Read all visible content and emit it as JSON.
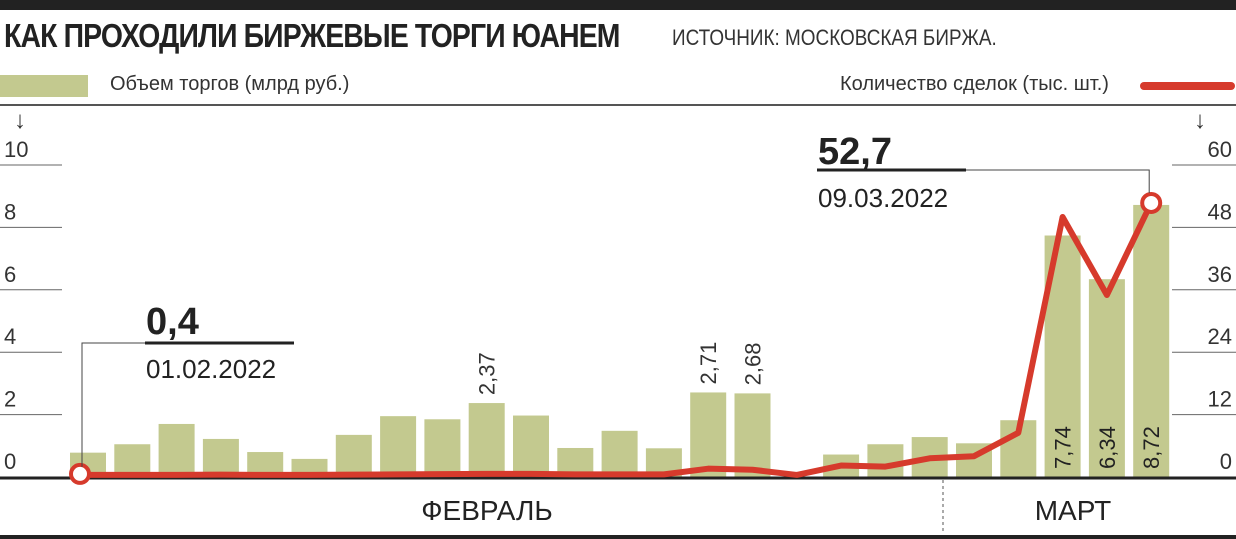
{
  "header": {
    "title": "КАК ПРОХОДИЛИ БИРЖЕВЫЕ ТОРГИ ЮАНЕМ",
    "source": "ИСТОЧНИК: МОСКОВСКАЯ БИРЖА."
  },
  "legend": {
    "bars_label": "Объем торгов (млрд руб.)",
    "line_label": "Количество сделок (тыс. шт.)",
    "arrow_left": "↓",
    "arrow_right": "↓"
  },
  "colors": {
    "bar": "#c3c98f",
    "line": "#d63a2c",
    "axis": "#222222"
  },
  "chart_data": {
    "type": "bar+line",
    "y_left": {
      "ylim": [
        0,
        10
      ],
      "ticks": [
        "0",
        "2",
        "4",
        "6",
        "8",
        "10"
      ]
    },
    "y_right": {
      "ylim": [
        0,
        60
      ],
      "ticks": [
        "0",
        "12",
        "24",
        "36",
        "48",
        "60"
      ]
    },
    "months": [
      "ФЕВРАЛЬ",
      "МАРТ"
    ],
    "bars": {
      "name": "Объем торгов (млрд руб.)",
      "values": [
        0.78,
        1.05,
        1.7,
        1.22,
        0.8,
        0.58,
        1.35,
        1.95,
        1.85,
        2.37,
        1.97,
        0.93,
        1.48,
        0.92,
        2.71,
        2.68,
        null,
        0.72,
        1.05,
        1.28,
        1.08,
        1.82,
        7.74,
        6.34,
        8.72
      ],
      "labels": [
        "",
        "",
        "",
        "",
        "",
        "",
        "",
        "",
        "",
        "2,37",
        "",
        "",
        "",
        "",
        "2,71",
        "2,68",
        "",
        "",
        "",
        "",
        "",
        "",
        "7,74",
        "6,34",
        "8,72"
      ]
    },
    "line": {
      "name": "Количество сделок (тыс. шт.)",
      "values": [
        0.4,
        0.4,
        0.4,
        0.45,
        0.4,
        0.4,
        0.45,
        0.5,
        0.55,
        0.6,
        0.6,
        0.5,
        0.5,
        0.5,
        1.6,
        1.4,
        0.4,
        2.2,
        2.0,
        3.6,
        4.0,
        8.5,
        50.0,
        35.0,
        52.7
      ]
    },
    "annotations": [
      {
        "value": "0,4",
        "date": "01.02.2022"
      },
      {
        "value": "52,7",
        "date": "09.03.2022"
      }
    ]
  }
}
